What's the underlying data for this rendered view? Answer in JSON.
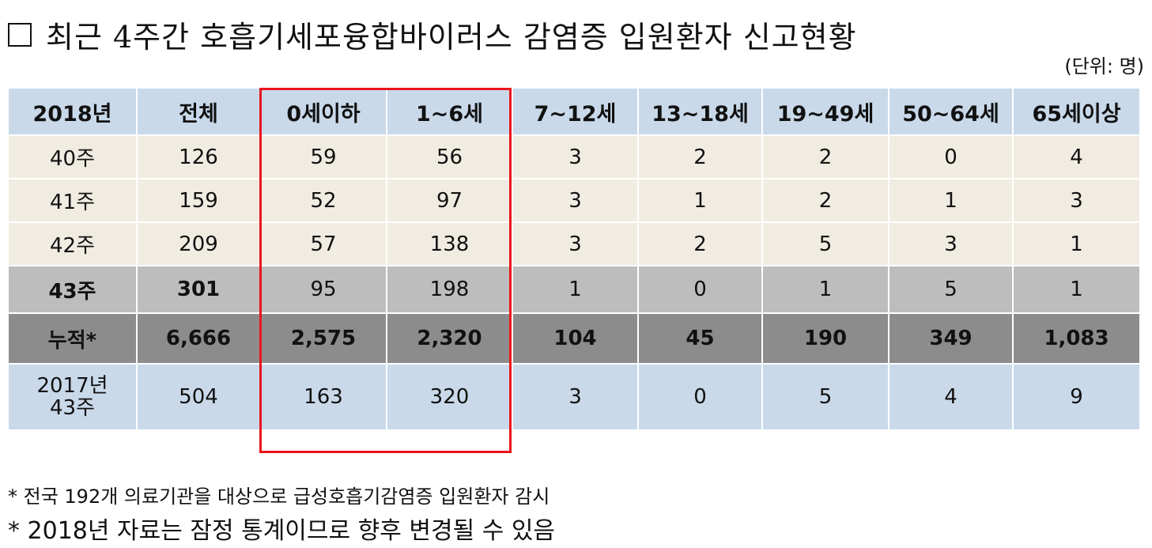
{
  "title": "최근 4주간 호흡기세포융합바이러스 감염증 입원환자 신고현황",
  "unit": "(단위: 명)",
  "table": {
    "headers": [
      "2018년",
      "전체",
      "0세이하",
      "1~6세",
      "7~12세",
      "13~18세",
      "19~49세",
      "50~64세",
      "65세이상"
    ],
    "rows": [
      [
        "40주",
        "126",
        "59",
        "56",
        "3",
        "2",
        "2",
        "0",
        "4"
      ],
      [
        "41주",
        "159",
        "52",
        "97",
        "3",
        "1",
        "2",
        "1",
        "3"
      ],
      [
        "42주",
        "209",
        "57",
        "138",
        "3",
        "2",
        "5",
        "3",
        "1"
      ],
      [
        "43주",
        "301",
        "95",
        "198",
        "1",
        "0",
        "1",
        "5",
        "1"
      ],
      [
        "누적*",
        "6,666",
        "2,575",
        "2,320",
        "104",
        "45",
        "190",
        "349",
        "1,083"
      ]
    ],
    "prev_row": {
      "label_line1": "2017년",
      "label_line2": "43주",
      "values": [
        "504",
        "163",
        "320",
        "3",
        "0",
        "5",
        "4",
        "9"
      ]
    }
  },
  "notes": [
    "* 전국 192개 의료기관을 대상으로 급성호흡기감염증 입원환자 감시",
    "* 2018년 자료는 잠정 통계이므로 향후 변경될 수 있음"
  ],
  "colors": {
    "header_bg": "#c9d9ea",
    "week_bg": "#f1ece2",
    "current_week_bg": "#bdbdbd",
    "cumulative_bg": "#8c8c8c",
    "highlight_border": "#e8161c"
  }
}
